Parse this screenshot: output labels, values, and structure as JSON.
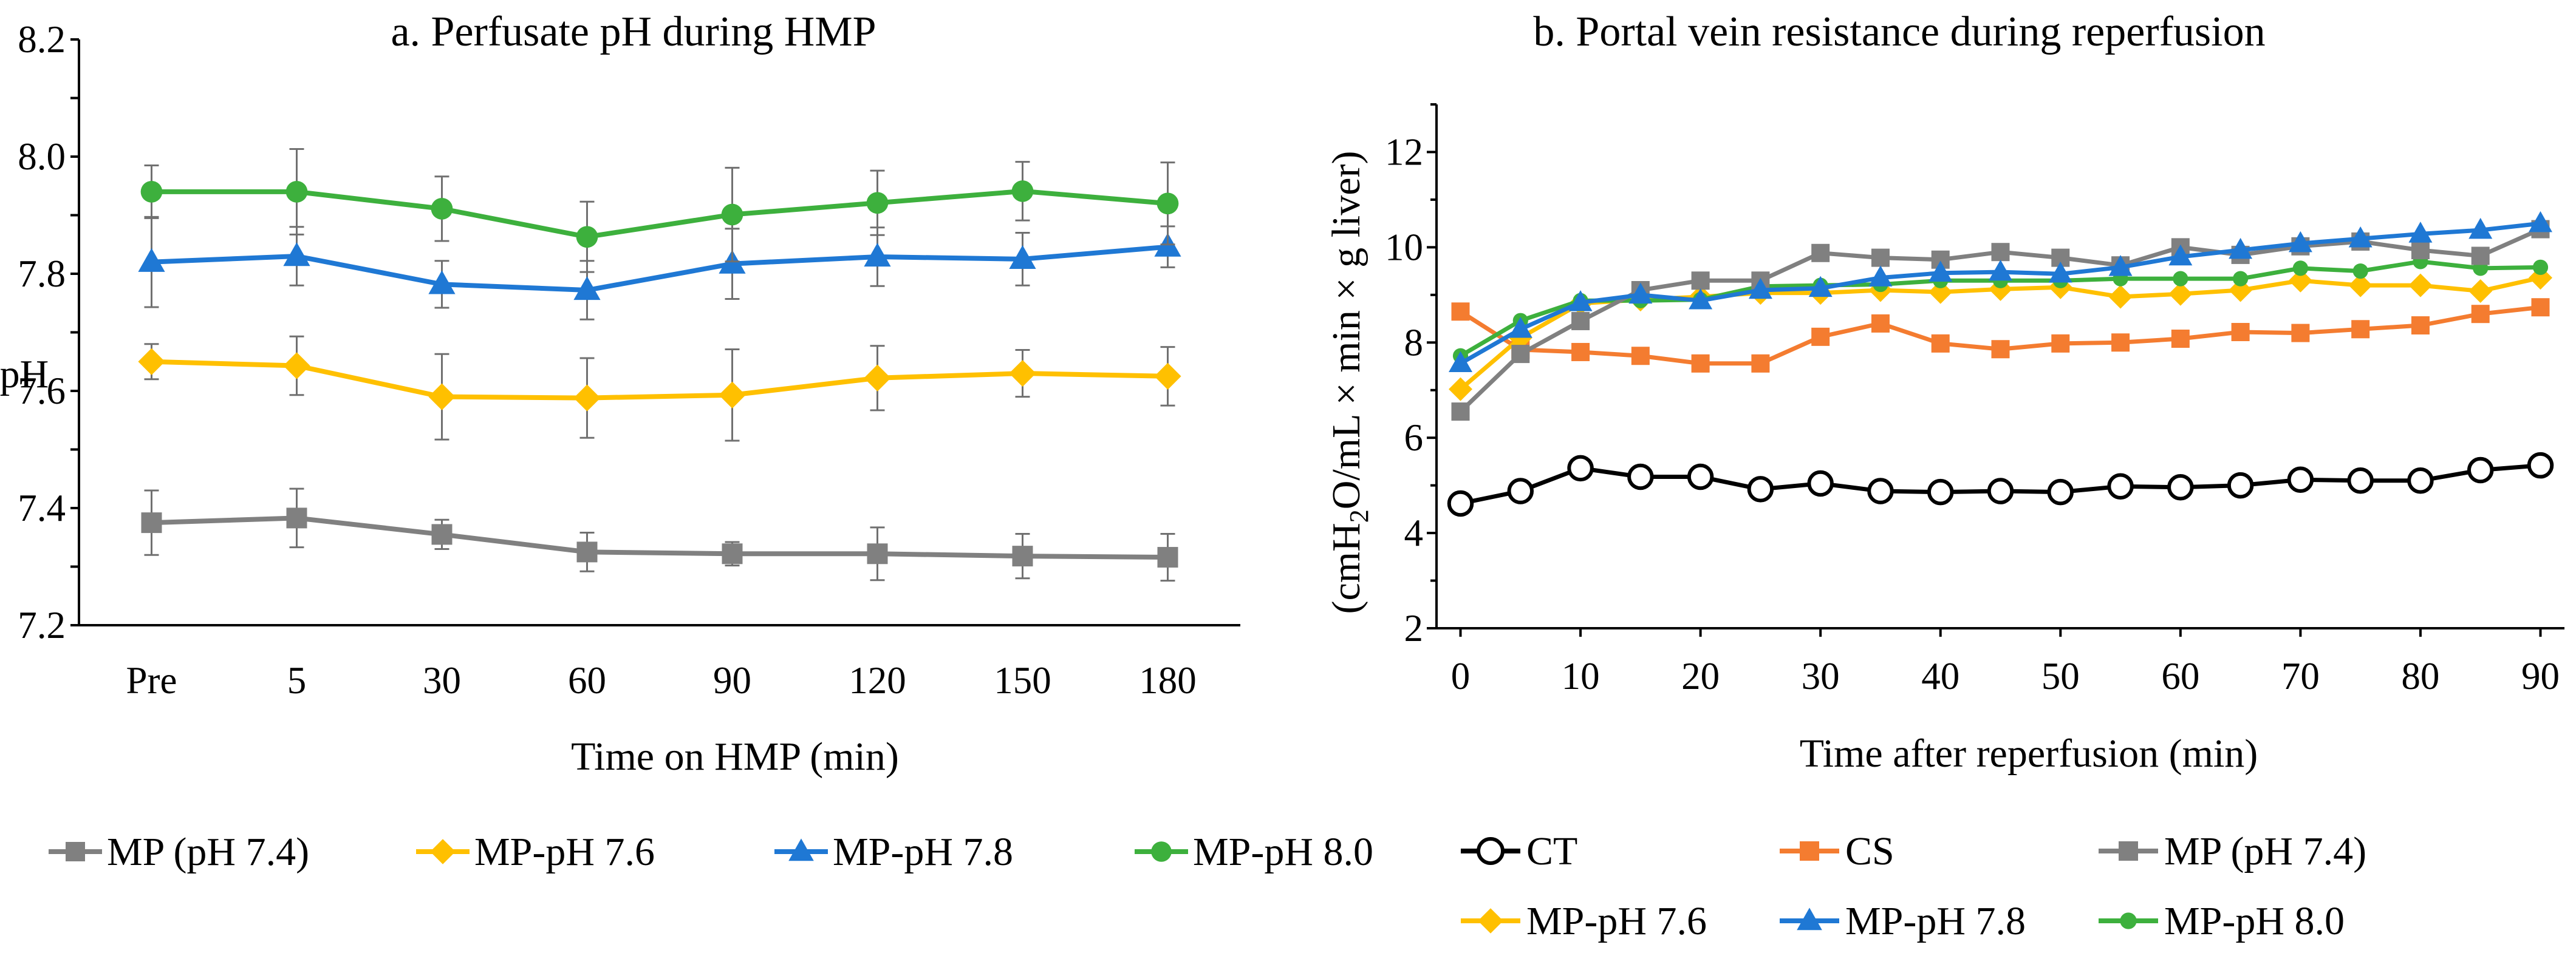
{
  "chart_data": [
    {
      "type": "line",
      "title": "a. Perfusate pH during HMP",
      "xlabel": "Time on HMP (min)",
      "ylabel": "pH",
      "categories": [
        "Pre",
        "5",
        "30",
        "60",
        "90",
        "120",
        "150",
        "180"
      ],
      "ylim": [
        7.2,
        8.2
      ],
      "yticks": [
        "7.2",
        "7.4",
        "7.6",
        "7.8",
        "8.0",
        "8.2"
      ],
      "legend_position": "bottom",
      "series": [
        {
          "name": "MP (pH 7.4)",
          "color": "#808080",
          "marker": "square",
          "values": [
            7.375,
            7.383,
            7.355,
            7.325,
            7.322,
            7.322,
            7.318,
            7.316
          ],
          "errors": [
            0.055,
            0.05,
            0.025,
            0.033,
            0.02,
            0.045,
            0.038,
            0.04
          ]
        },
        {
          "name": "MP-pH 7.6",
          "color": "#FFC000",
          "marker": "diamond",
          "values": [
            7.65,
            7.643,
            7.59,
            7.588,
            7.593,
            7.622,
            7.63,
            7.625
          ],
          "errors": [
            0.03,
            0.05,
            0.073,
            0.068,
            0.078,
            0.055,
            0.04,
            0.05
          ]
        },
        {
          "name": "MP-pH 7.8",
          "color": "#1F78D4",
          "marker": "triangle",
          "values": [
            7.82,
            7.83,
            7.782,
            7.772,
            7.817,
            7.829,
            7.825,
            7.846
          ],
          "errors": [
            0.077,
            0.05,
            0.04,
            0.05,
            0.06,
            0.05,
            0.045,
            0.035
          ]
        },
        {
          "name": "MP-pH 8.0",
          "color": "#3DB03D",
          "marker": "circle",
          "values": [
            7.94,
            7.94,
            7.911,
            7.863,
            7.901,
            7.921,
            7.941,
            7.92
          ],
          "errors": [
            0.045,
            0.073,
            0.055,
            0.06,
            0.08,
            0.055,
            0.05,
            0.07
          ]
        }
      ]
    },
    {
      "type": "line",
      "title": "b. Portal vein resistance during reperfusion",
      "xlabel": "Time after reperfusion (min)",
      "ylabel": "(cmH2O/mL × min × g liver)",
      "ylabel_parts": {
        "pre": "(cmH",
        "sub": "2",
        "post": "O/mL × min × g liver)"
      },
      "x": [
        0,
        5,
        10,
        15,
        20,
        25,
        30,
        35,
        40,
        45,
        50,
        55,
        60,
        65,
        70,
        75,
        80,
        85,
        90
      ],
      "xticks": [
        "0",
        "10",
        "20",
        "30",
        "40",
        "50",
        "60",
        "70",
        "80",
        "90"
      ],
      "xlim": [
        -2,
        92
      ],
      "ylim": [
        2,
        13
      ],
      "yticks": [
        "2",
        "4",
        "6",
        "8",
        "10",
        "12"
      ],
      "legend_position": "bottom",
      "series": [
        {
          "name": "CT",
          "color": "#000000",
          "marker": "open-circle",
          "values": [
            4.62,
            4.88,
            5.36,
            5.18,
            5.18,
            4.92,
            5.04,
            4.88,
            4.86,
            4.88,
            4.86,
            4.98,
            4.96,
            5.0,
            5.12,
            5.1,
            5.1,
            5.32,
            5.42
          ]
        },
        {
          "name": "CS",
          "color": "#F47C30",
          "marker": "square",
          "values": [
            8.65,
            7.85,
            7.8,
            7.72,
            7.56,
            7.56,
            8.12,
            8.4,
            7.98,
            7.86,
            7.98,
            8.0,
            8.08,
            8.22,
            8.2,
            8.28,
            8.36,
            8.6,
            8.74
          ]
        },
        {
          "name": "MP (pH 7.4)",
          "color": "#808080",
          "marker": "square",
          "values": [
            6.55,
            7.76,
            8.45,
            9.1,
            9.3,
            9.3,
            9.88,
            9.78,
            9.74,
            9.9,
            9.78,
            9.62,
            10.0,
            9.84,
            10.02,
            10.12,
            9.94,
            9.82,
            10.38
          ]
        },
        {
          "name": "MP-pH 7.6",
          "color": "#FFC000",
          "marker": "diamond",
          "values": [
            7.02,
            8.1,
            8.82,
            8.9,
            8.96,
            9.04,
            9.04,
            9.1,
            9.06,
            9.12,
            9.16,
            8.96,
            9.02,
            9.1,
            9.3,
            9.2,
            9.2,
            9.08,
            9.36
          ]
        },
        {
          "name": "MP-pH 7.8",
          "color": "#1F78D4",
          "marker": "triangle",
          "values": [
            7.56,
            8.28,
            8.84,
            9.0,
            8.88,
            9.1,
            9.14,
            9.36,
            9.46,
            9.48,
            9.44,
            9.58,
            9.8,
            9.94,
            10.08,
            10.18,
            10.28,
            10.36,
            10.5
          ]
        },
        {
          "name": "MP-pH 8.0",
          "color": "#3DB03D",
          "marker": "circle",
          "values": [
            7.72,
            8.46,
            8.88,
            8.88,
            8.9,
            9.18,
            9.2,
            9.22,
            9.3,
            9.3,
            9.3,
            9.34,
            9.34,
            9.34,
            9.56,
            9.5,
            9.7,
            9.56,
            9.58
          ]
        }
      ]
    }
  ]
}
